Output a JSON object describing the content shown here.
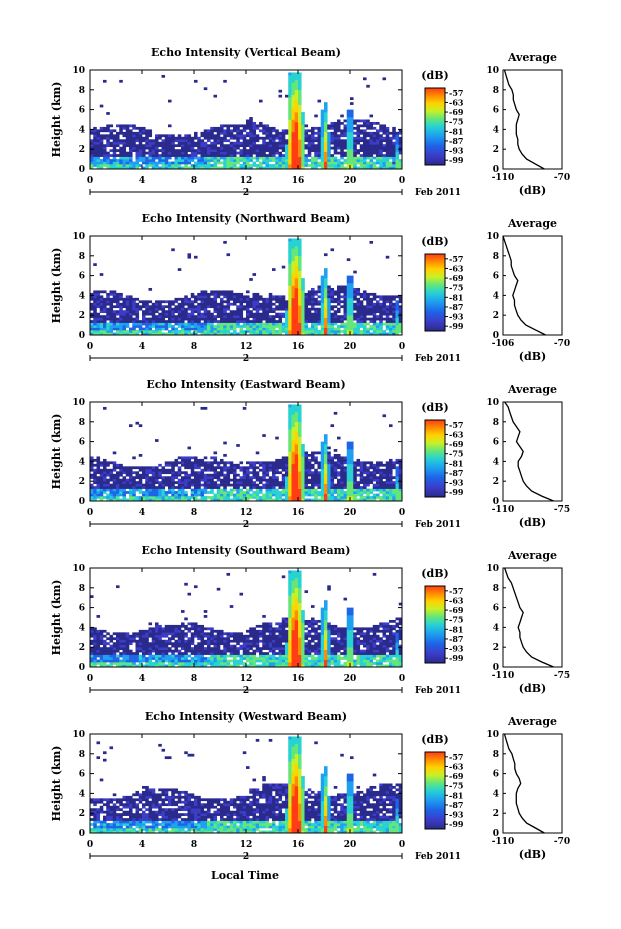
{
  "chart_data": {
    "type": "heatmap",
    "x_axis_label": "Local Time",
    "date_label": "Feb 2011",
    "day_label": "2",
    "x_ticks": [
      "0",
      "4",
      "8",
      "12",
      "16",
      "20",
      "0"
    ],
    "xlim": [
      0,
      24
    ],
    "y_axis_label": "Height (km)",
    "y_ticks": [
      "0",
      "2",
      "4",
      "6",
      "8",
      "10"
    ],
    "ylim": [
      0,
      10
    ],
    "colorbar": {
      "unit_label": "(dB)",
      "ticks": [
        "-57",
        "-63",
        "-69",
        "-75",
        "-81",
        "-87",
        "-93",
        "-99"
      ],
      "range": [
        -102,
        -54
      ],
      "colormap": [
        "#2a2a8c",
        "#3c3cc8",
        "#1e64e6",
        "#1ea0f0",
        "#28d2d2",
        "#64e678",
        "#c8f028",
        "#ffd200",
        "#ff8c00",
        "#ff3c14"
      ]
    },
    "panels": [
      {
        "title": "Echo Intensity (Vertical Beam)",
        "average": {
          "title": "Average",
          "xlabel": "(dB)",
          "x_ticks": [
            "-110",
            "-70"
          ],
          "xlim": [
            -110,
            -70
          ],
          "heights_km": [
            0,
            0.5,
            1,
            1.5,
            2,
            2.5,
            3,
            3.5,
            4,
            4.5,
            5,
            5.5,
            6,
            6.5,
            7,
            7.5,
            8,
            8.5,
            9,
            9.5,
            10
          ],
          "values_db": [
            -82,
            -88,
            -94,
            -97,
            -99,
            -100,
            -100,
            -101,
            -101,
            -101,
            -100,
            -99,
            -101,
            -102,
            -103,
            -103,
            -104,
            -106,
            -107,
            -108,
            -109
          ]
        }
      },
      {
        "title": "Echo Intensity (Northward Beam)",
        "average": {
          "title": "Average",
          "xlabel": "(dB)",
          "x_ticks": [
            "-106",
            "-70"
          ],
          "xlim": [
            -106,
            -70
          ],
          "heights_km": [
            0,
            0.5,
            1,
            1.5,
            2,
            2.5,
            3,
            3.5,
            4,
            4.5,
            5,
            5.5,
            6,
            6.5,
            7,
            7.5,
            8,
            8.5,
            9,
            9.5,
            10
          ],
          "values_db": [
            -80,
            -86,
            -92,
            -95,
            -97,
            -98,
            -99,
            -99,
            -100,
            -99,
            -98,
            -97,
            -99,
            -100,
            -101,
            -101,
            -102,
            -103,
            -104,
            -105,
            -106
          ]
        }
      },
      {
        "title": "Echo Intensity (Eastward Beam)",
        "average": {
          "title": "Average",
          "xlabel": "(dB)",
          "x_ticks": [
            "-110",
            "-75"
          ],
          "xlim": [
            -110,
            -75
          ],
          "heights_km": [
            0,
            0.5,
            1,
            1.5,
            2,
            2.5,
            3,
            3.5,
            4,
            4.5,
            5,
            5.5,
            6,
            6.5,
            7,
            7.5,
            8,
            8.5,
            9,
            9.5,
            10
          ],
          "values_db": [
            -80,
            -87,
            -93,
            -96,
            -98,
            -99,
            -100,
            -101,
            -101,
            -99,
            -98,
            -100,
            -102,
            -101,
            -100,
            -102,
            -104,
            -105,
            -106,
            -107,
            -109
          ]
        }
      },
      {
        "title": "Echo Intensity (Southward Beam)",
        "average": {
          "title": "Average",
          "xlabel": "(dB)",
          "x_ticks": [
            "-110",
            "-75"
          ],
          "xlim": [
            -110,
            -75
          ],
          "heights_km": [
            0,
            0.5,
            1,
            1.5,
            2,
            2.5,
            3,
            3.5,
            4,
            4.5,
            5,
            5.5,
            6,
            6.5,
            7,
            7.5,
            8,
            8.5,
            9,
            9.5,
            10
          ],
          "values_db": [
            -80,
            -87,
            -93,
            -96,
            -98,
            -99,
            -100,
            -100,
            -101,
            -100,
            -99,
            -98,
            -100,
            -101,
            -102,
            -103,
            -104,
            -105,
            -107,
            -108,
            -109
          ]
        }
      },
      {
        "title": "Echo Intensity (Westward Beam)",
        "average": {
          "title": "Average",
          "xlabel": "(dB)",
          "x_ticks": [
            "-110",
            "-70"
          ],
          "xlim": [
            -110,
            -70
          ],
          "heights_km": [
            0,
            0.5,
            1,
            1.5,
            2,
            2.5,
            3,
            3.5,
            4,
            4.5,
            5,
            5.5,
            6,
            6.5,
            7,
            7.5,
            8,
            8.5,
            9,
            9.5,
            10
          ],
          "values_db": [
            -82,
            -88,
            -94,
            -97,
            -99,
            -100,
            -101,
            -101,
            -101,
            -100,
            -98,
            -99,
            -101,
            -102,
            -102,
            -103,
            -104,
            -106,
            -107,
            -108,
            -109
          ]
        }
      }
    ]
  }
}
